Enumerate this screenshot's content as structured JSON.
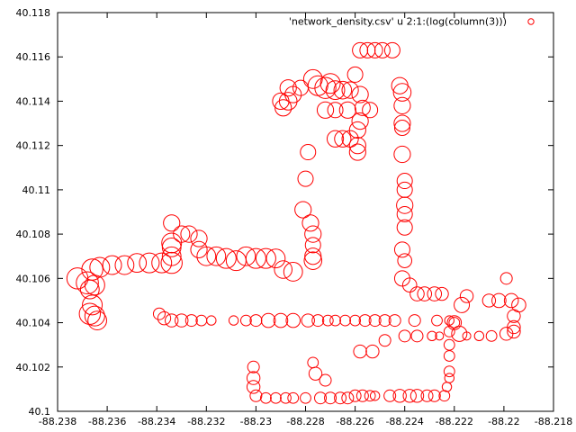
{
  "chart_data": {
    "type": "scatter",
    "title": "",
    "xlabel": "",
    "ylabel": "",
    "xlim": [
      -88.238,
      -88.218
    ],
    "ylim": [
      40.1,
      40.118
    ],
    "grid": false,
    "legend_position": "top-right",
    "x_ticks": [
      "-88.238",
      "-88.236",
      "-88.234",
      "-88.232",
      "-88.23",
      "-88.228",
      "-88.226",
      "-88.224",
      "-88.222",
      "-88.22",
      "-88.218"
    ],
    "x_tick_values": [
      -88.238,
      -88.236,
      -88.234,
      -88.232,
      -88.23,
      -88.228,
      -88.226,
      -88.224,
      -88.222,
      -88.22,
      -88.218
    ],
    "y_ticks": [
      "40.1",
      "40.102",
      "40.104",
      "40.106",
      "40.108",
      "40.11",
      "40.112",
      "40.114",
      "40.116",
      "40.118"
    ],
    "y_tick_values": [
      40.1,
      40.102,
      40.104,
      40.106,
      40.108,
      40.11,
      40.112,
      40.114,
      40.116,
      40.118
    ],
    "series": [
      {
        "name": "'network_density.csv' u 2:1:(log(column(3)))",
        "color": "#ff0000",
        "marker": "open-circle",
        "points": [
          [
            -88.2372,
            40.106,
            1.8
          ],
          [
            -88.2368,
            40.1058,
            1.9
          ],
          [
            -88.2366,
            40.1064,
            1.8
          ],
          [
            -88.2365,
            40.1057,
            1.7
          ],
          [
            -88.2367,
            40.1055,
            1.6
          ],
          [
            -88.2366,
            40.1048,
            1.7
          ],
          [
            -88.2367,
            40.1044,
            1.8
          ],
          [
            -88.2365,
            40.1043,
            1.7
          ],
          [
            -88.2364,
            40.1041,
            1.6
          ],
          [
            -88.2363,
            40.1065,
            1.7
          ],
          [
            -88.2358,
            40.1066,
            1.6
          ],
          [
            -88.2353,
            40.1066,
            1.6
          ],
          [
            -88.2348,
            40.1067,
            1.6
          ],
          [
            -88.2343,
            40.1067,
            1.7
          ],
          [
            -88.2338,
            40.1067,
            1.7
          ],
          [
            -88.2334,
            40.1067,
            1.8
          ],
          [
            -88.2334,
            40.107,
            1.6
          ],
          [
            -88.2334,
            40.1074,
            1.6
          ],
          [
            -88.2334,
            40.1076,
            1.7
          ],
          [
            -88.2334,
            40.1085,
            1.4
          ],
          [
            -88.233,
            40.108,
            1.4
          ],
          [
            -88.2327,
            40.108,
            1.4
          ],
          [
            -88.2323,
            40.1078,
            1.4
          ],
          [
            -88.2323,
            40.1073,
            1.4
          ],
          [
            -88.232,
            40.107,
            1.6
          ],
          [
            -88.2316,
            40.107,
            1.6
          ],
          [
            -88.2312,
            40.1069,
            1.7
          ],
          [
            -88.2308,
            40.1068,
            1.7
          ],
          [
            -88.2304,
            40.107,
            1.6
          ],
          [
            -88.23,
            40.1069,
            1.7
          ],
          [
            -88.2296,
            40.1069,
            1.7
          ],
          [
            -88.2292,
            40.1069,
            1.6
          ],
          [
            -88.2289,
            40.1064,
            1.5
          ],
          [
            -88.2285,
            40.1063,
            1.6
          ],
          [
            -88.2281,
            40.1091,
            1.4
          ],
          [
            -88.2278,
            40.1085,
            1.4
          ],
          [
            -88.2277,
            40.108,
            1.4
          ],
          [
            -88.2277,
            40.1075,
            1.3
          ],
          [
            -88.2277,
            40.107,
            1.4
          ],
          [
            -88.2277,
            40.1068,
            1.5
          ],
          [
            -88.228,
            40.1105,
            1.3
          ],
          [
            -88.2279,
            40.1117,
            1.3
          ],
          [
            -88.2277,
            40.115,
            1.6
          ],
          [
            -88.2275,
            40.1147,
            1.7
          ],
          [
            -88.2272,
            40.1146,
            1.8
          ],
          [
            -88.227,
            40.1148,
            1.7
          ],
          [
            -88.2268,
            40.1145,
            1.6
          ],
          [
            -88.2265,
            40.1145,
            1.5
          ],
          [
            -88.2262,
            40.1145,
            1.4
          ],
          [
            -88.2258,
            40.1143,
            1.4
          ],
          [
            -88.2285,
            40.1143,
            1.4
          ],
          [
            -88.2287,
            40.114,
            1.5
          ],
          [
            -88.2289,
            40.1137,
            1.4
          ],
          [
            -88.229,
            40.114,
            1.4
          ],
          [
            -88.2287,
            40.1146,
            1.4
          ],
          [
            -88.2282,
            40.1146,
            1.3
          ],
          [
            -88.2272,
            40.1136,
            1.4
          ],
          [
            -88.2268,
            40.1136,
            1.3
          ],
          [
            -88.2263,
            40.1136,
            1.4
          ],
          [
            -88.226,
            40.1152,
            1.3
          ],
          [
            -88.2268,
            40.1123,
            1.4
          ],
          [
            -88.2265,
            40.1123,
            1.4
          ],
          [
            -88.2262,
            40.1123,
            1.4
          ],
          [
            -88.2259,
            40.112,
            1.4
          ],
          [
            -88.2259,
            40.1117,
            1.4
          ],
          [
            -88.2259,
            40.1127,
            1.4
          ],
          [
            -88.2258,
            40.1131,
            1.4
          ],
          [
            -88.2257,
            40.1137,
            1.3
          ],
          [
            -88.2254,
            40.1136,
            1.3
          ],
          [
            -88.2258,
            40.1163,
            1.3
          ],
          [
            -88.2255,
            40.1163,
            1.3
          ],
          [
            -88.2252,
            40.1163,
            1.3
          ],
          [
            -88.2249,
            40.1163,
            1.3
          ],
          [
            -88.2245,
            40.1163,
            1.3
          ],
          [
            -88.2242,
            40.1147,
            1.4
          ],
          [
            -88.2241,
            40.1144,
            1.5
          ],
          [
            -88.2241,
            40.1138,
            1.4
          ],
          [
            -88.2241,
            40.113,
            1.4
          ],
          [
            -88.2241,
            40.1128,
            1.3
          ],
          [
            -88.2241,
            40.1116,
            1.4
          ],
          [
            -88.224,
            40.1104,
            1.3
          ],
          [
            -88.224,
            40.11,
            1.3
          ],
          [
            -88.224,
            40.1093,
            1.4
          ],
          [
            -88.224,
            40.1089,
            1.3
          ],
          [
            -88.224,
            40.1083,
            1.3
          ],
          [
            -88.2241,
            40.1073,
            1.3
          ],
          [
            -88.224,
            40.1068,
            1.2
          ],
          [
            -88.2241,
            40.106,
            1.3
          ],
          [
            -88.2238,
            40.1057,
            1.2
          ],
          [
            -88.2235,
            40.1053,
            1.2
          ],
          [
            -88.2232,
            40.1053,
            1.2
          ],
          [
            -88.2228,
            40.1053,
            1.2
          ],
          [
            -88.2225,
            40.1053,
            1.1
          ],
          [
            -88.2215,
            40.1052,
            1.1
          ],
          [
            -88.2206,
            40.105,
            1.1
          ],
          [
            -88.2202,
            40.105,
            1.2
          ],
          [
            -88.2197,
            40.105,
            1.2
          ],
          [
            -88.2194,
            40.1048,
            1.2
          ],
          [
            -88.2196,
            40.1043,
            1.1
          ],
          [
            -88.2196,
            40.1038,
            1.1
          ],
          [
            -88.2196,
            40.1036,
            1.1
          ],
          [
            -88.2199,
            40.1035,
            1.1
          ],
          [
            -88.2199,
            40.106,
            1.0
          ],
          [
            -88.2205,
            40.1034,
            0.9
          ],
          [
            -88.221,
            40.1034,
            0.8
          ],
          [
            -88.2215,
            40.1034,
            0.7
          ],
          [
            -88.222,
            40.104,
            0.9
          ],
          [
            -88.2222,
            40.1036,
            0.9
          ],
          [
            -88.2222,
            40.103,
            0.9
          ],
          [
            -88.2222,
            40.1025,
            0.9
          ],
          [
            -88.2222,
            40.1018,
            0.9
          ],
          [
            -88.2222,
            40.1015,
            0.8
          ],
          [
            -88.2223,
            40.1011,
            0.8
          ],
          [
            -88.2224,
            40.1007,
            0.9
          ],
          [
            -88.2228,
            40.1007,
            1.0
          ],
          [
            -88.2231,
            40.1007,
            1.0
          ],
          [
            -88.2235,
            40.1007,
            1.1
          ],
          [
            -88.2238,
            40.1007,
            1.1
          ],
          [
            -88.2242,
            40.1007,
            1.1
          ],
          [
            -88.2246,
            40.1007,
            1.0
          ],
          [
            -88.2252,
            40.1007,
            0.8
          ],
          [
            -88.2254,
            40.1007,
            0.9
          ],
          [
            -88.2257,
            40.1007,
            1.0
          ],
          [
            -88.226,
            40.1007,
            1.0
          ],
          [
            -88.2263,
            40.1006,
            1.0
          ],
          [
            -88.2266,
            40.1006,
            1.0
          ],
          [
            -88.227,
            40.1006,
            1.0
          ],
          [
            -88.2274,
            40.1006,
            1.0
          ],
          [
            -88.228,
            40.1006,
            0.9
          ],
          [
            -88.2285,
            40.1006,
            0.9
          ],
          [
            -88.2288,
            40.1006,
            0.9
          ],
          [
            -88.2292,
            40.1006,
            0.9
          ],
          [
            -88.2296,
            40.1006,
            0.9
          ],
          [
            -88.23,
            40.1007,
            1.0
          ],
          [
            -88.2301,
            40.1011,
            1.1
          ],
          [
            -88.2301,
            40.1015,
            1.1
          ],
          [
            -88.2301,
            40.102,
            1.0
          ],
          [
            -88.2272,
            40.1014,
            1.0
          ],
          [
            -88.2276,
            40.1017,
            1.1
          ],
          [
            -88.2277,
            40.1022,
            0.9
          ],
          [
            -88.2258,
            40.1027,
            1.1
          ],
          [
            -88.2253,
            40.1027,
            1.1
          ],
          [
            -88.2248,
            40.1032,
            1.0
          ],
          [
            -88.224,
            40.1034,
            1.0
          ],
          [
            -88.2235,
            40.1034,
            1.0
          ],
          [
            -88.2229,
            40.1034,
            0.8
          ],
          [
            -88.2226,
            40.1034,
            0.7
          ],
          [
            -88.2236,
            40.1041,
            1.0
          ],
          [
            -88.2227,
            40.1041,
            0.9
          ],
          [
            -88.2222,
            40.1041,
            0.8
          ],
          [
            -88.2244,
            40.1041,
            1.0
          ],
          [
            -88.2248,
            40.1041,
            1.0
          ],
          [
            -88.2252,
            40.1041,
            1.0
          ],
          [
            -88.2256,
            40.1041,
            1.0
          ],
          [
            -88.226,
            40.1041,
            0.9
          ],
          [
            -88.2264,
            40.1041,
            0.9
          ],
          [
            -88.2268,
            40.1041,
            0.9
          ],
          [
            -88.2271,
            40.1041,
            0.9
          ],
          [
            -88.2275,
            40.1041,
            1.0
          ],
          [
            -88.2279,
            40.1041,
            1.1
          ],
          [
            -88.2285,
            40.1041,
            1.2
          ],
          [
            -88.229,
            40.1041,
            1.2
          ],
          [
            -88.2295,
            40.1041,
            1.2
          ],
          [
            -88.23,
            40.1041,
            1.0
          ],
          [
            -88.2304,
            40.1041,
            0.9
          ],
          [
            -88.2309,
            40.1041,
            0.8
          ],
          [
            -88.2318,
            40.1041,
            0.8
          ],
          [
            -88.2322,
            40.1041,
            0.9
          ],
          [
            -88.2326,
            40.1041,
            1.0
          ],
          [
            -88.233,
            40.1041,
            1.1
          ],
          [
            -88.2334,
            40.1041,
            1.1
          ],
          [
            -88.2337,
            40.1042,
            1.1
          ],
          [
            -88.2339,
            40.1044,
            1.0
          ],
          [
            -88.2218,
            40.1035,
            1.3
          ],
          [
            -88.222,
            40.104,
            1.2
          ],
          [
            -88.2217,
            40.1048,
            1.3
          ]
        ]
      }
    ]
  }
}
